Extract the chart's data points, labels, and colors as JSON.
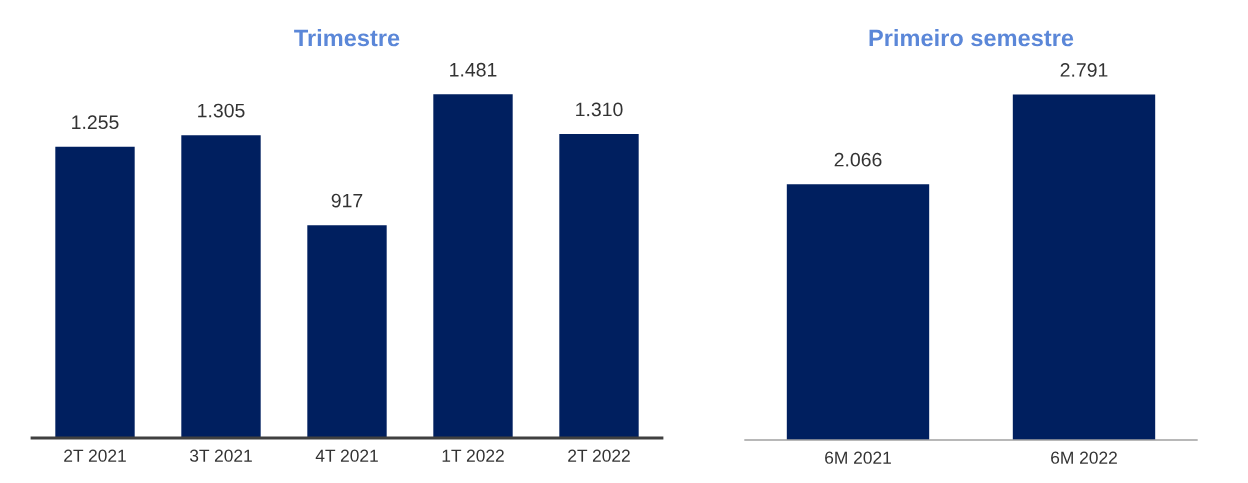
{
  "chart_data": [
    {
      "type": "bar",
      "title": "Trimestre",
      "categories": [
        "2T 2021",
        "3T 2021",
        "4T 2021",
        "1T 2022",
        "2T 2022"
      ],
      "values": [
        1255,
        1305,
        917,
        1481,
        1310
      ],
      "color": "#001f5f",
      "value_labels": [
        "1.255",
        "1.305",
        "917",
        "1.481",
        "1.310"
      ],
      "tick_labels": "x",
      "grid": false,
      "legend": false
    },
    {
      "type": "bar",
      "title": "Primeiro semestre",
      "categories": [
        "6M 2021",
        "6M 2022"
      ],
      "values": [
        2066,
        2791
      ],
      "color": "#001f5f",
      "value_labels": [
        "2.066",
        "2.791"
      ],
      "tick_labels": "x",
      "grid": false,
      "legend": false
    }
  ]
}
